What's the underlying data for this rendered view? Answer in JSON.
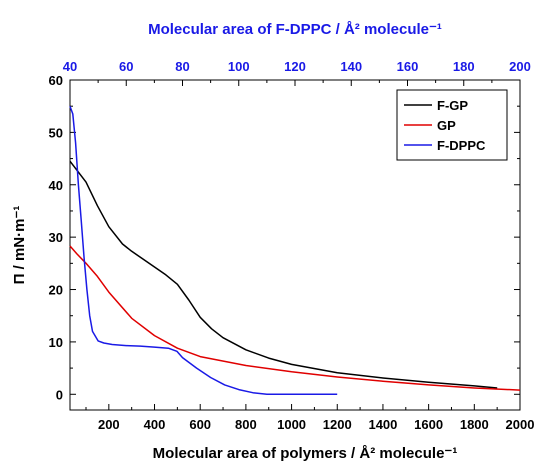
{
  "chart_data": {
    "type": "line",
    "x": {
      "label": "Molecular area of polymers / Å² molecule⁻¹",
      "range": [
        30,
        2000
      ],
      "ticks": [
        200,
        400,
        600,
        800,
        1000,
        1200,
        1400,
        1600,
        1800,
        2000
      ]
    },
    "x_top": {
      "label": "Molecular area of F-DPPC / Å² molecule⁻¹",
      "range": [
        40,
        200
      ],
      "ticks": [
        40,
        60,
        80,
        100,
        120,
        140,
        160,
        180,
        200
      ],
      "color": "#1a1ae6"
    },
    "y": {
      "label": "Π / mN·m⁻¹",
      "range": [
        -3,
        60
      ],
      "ticks": [
        0,
        10,
        20,
        30,
        40,
        50,
        60
      ]
    },
    "legend": {
      "position": "top-right",
      "entries": [
        "F-GP",
        "GP",
        "F-DPPC"
      ]
    },
    "series": [
      {
        "name": "F-GP",
        "color": "#000000",
        "axis": "bottom",
        "x": [
          30,
          100,
          150,
          200,
          260,
          300,
          350,
          400,
          450,
          500,
          550,
          600,
          650,
          700,
          800,
          900,
          1000,
          1200,
          1400,
          1600,
          1800,
          1900
        ],
        "y": [
          44.5,
          40.5,
          36,
          32,
          28.7,
          27.3,
          25.8,
          24.3,
          22.8,
          21,
          18,
          14.7,
          12.5,
          10.8,
          8.5,
          6.9,
          5.7,
          4.1,
          3.1,
          2.3,
          1.6,
          1.2
        ]
      },
      {
        "name": "GP",
        "color": "#e00000",
        "axis": "bottom",
        "x": [
          30,
          60,
          100,
          150,
          200,
          300,
          400,
          500,
          600,
          800,
          1000,
          1200,
          1400,
          1600,
          1800,
          2000
        ],
        "y": [
          28.3,
          26.8,
          25,
          22.5,
          19.5,
          14.5,
          11.2,
          8.8,
          7.2,
          5.5,
          4.3,
          3.3,
          2.5,
          1.8,
          1.2,
          0.8
        ]
      },
      {
        "name": "F-DPPC",
        "color": "#1a1ae6",
        "axis": "top",
        "x": [
          40,
          41,
          42,
          43,
          44,
          45,
          46,
          47,
          48,
          50,
          52,
          55,
          60,
          65,
          70,
          75,
          78,
          80,
          85,
          90,
          95,
          100,
          105,
          110,
          113,
          120,
          130,
          135
        ],
        "y": [
          55,
          53.5,
          48,
          40,
          33,
          26,
          20,
          15,
          12,
          10.2,
          9.8,
          9.5,
          9.3,
          9.2,
          9,
          8.8,
          8.2,
          7,
          5,
          3.2,
          1.8,
          0.9,
          0.3,
          0,
          0,
          0,
          0,
          0
        ]
      }
    ],
    "grid": false
  }
}
